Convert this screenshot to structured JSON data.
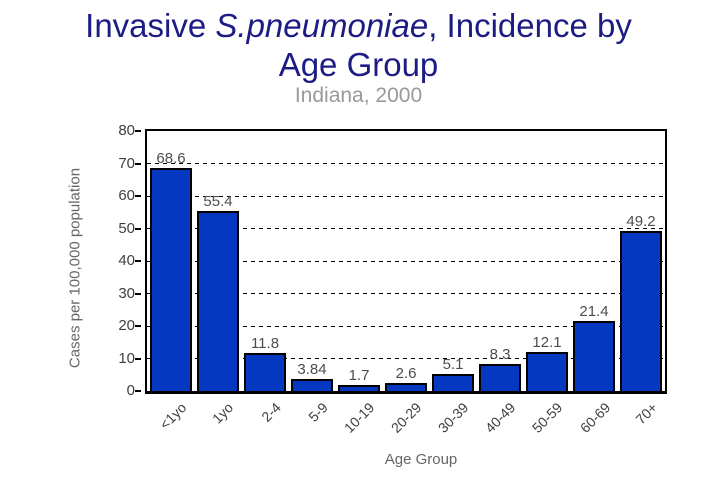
{
  "title": {
    "prefix": "Invasive ",
    "italic": "S.pneumoniae",
    "suffix": ", Incidence by",
    "line2": "Age Group"
  },
  "subtitle": "Indiana, 2000",
  "chart_data": {
    "type": "bar",
    "title": "Invasive S.pneumoniae, Incidence by Age Group",
    "subtitle": "Indiana, 2000",
    "categories": [
      "<1yo",
      "1yo",
      "2-4",
      "5-9",
      "10-19",
      "20-29",
      "30-39",
      "40-49",
      "50-59",
      "60-69",
      "70+"
    ],
    "values": [
      68.6,
      55.4,
      11.8,
      3.84,
      1.7,
      2.6,
      5.1,
      8.3,
      12.1,
      21.4,
      49.2
    ],
    "value_labels": [
      "68.6",
      "55.4",
      "11.8",
      "3.84",
      "1.7",
      "2.6",
      "5.1",
      "8.3",
      "12.1",
      "21.4",
      "49.2"
    ],
    "xlabel": "Age Group",
    "ylabel": "Cases per 100,000 population",
    "ylim": [
      0,
      80
    ],
    "yticks": [
      0,
      10,
      20,
      30,
      40,
      50,
      60,
      70,
      80
    ],
    "grid": "horizontal-dashed",
    "legend": "none",
    "bar_color": "#0538c0",
    "bar_border_color": "#000000"
  },
  "colors": {
    "title": "#1c1c84",
    "subtitle": "#999999",
    "axis_title": "#666666",
    "tick_label": "#404040",
    "value_label": "#4d4d4d",
    "background": "#ffffff"
  }
}
